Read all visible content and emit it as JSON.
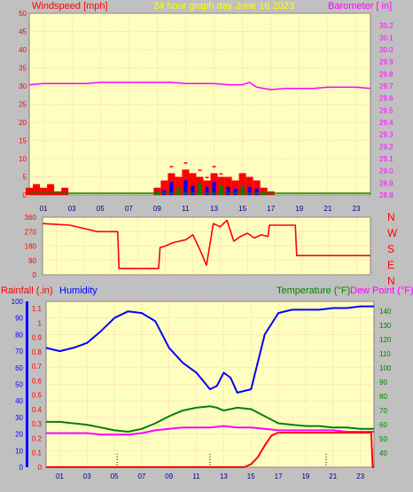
{
  "header": {
    "left": "Windspeed [mph]",
    "center": "24 hour graph day   June 16 2023",
    "right": "Barometer [ in]"
  },
  "colors": {
    "bg": "#c0c0c0",
    "plot": "#ffffc0",
    "grid": "#ff9090",
    "wind": "#ff0000",
    "gust_blue": "#0000ff",
    "gust_green": "#008000",
    "baro": "#ff00ff",
    "humidity": "#0000ff",
    "temp": "#008000",
    "dew": "#ff00ff",
    "rain": "#ff0000",
    "title": "#ffff00"
  },
  "x_ticks": [
    "01",
    "03",
    "05",
    "07",
    "09",
    "11",
    "13",
    "15",
    "17",
    "19",
    "21",
    "23"
  ],
  "lower_labels": {
    "rain": "Rainfall (.in)",
    "humidity": "Humidity",
    "temp": "Temperature (°F)",
    "dew": "Dew Point (°F)"
  },
  "compass": [
    "N",
    "W",
    "S",
    "E",
    "N"
  ],
  "chart_data": [
    {
      "type": "line",
      "title": "Windspeed [mph] / Barometer [ in]",
      "x_range": [
        0,
        24
      ],
      "ylim_left": [
        0,
        50
      ],
      "yticks_left": [
        0,
        5,
        10,
        15,
        20,
        25,
        30,
        35,
        40,
        45,
        50
      ],
      "ylim_right": [
        28.8,
        30.3
      ],
      "yticks_right": [
        28.8,
        28.9,
        29.0,
        29.1,
        29.2,
        29.3,
        29.4,
        29.5,
        29.6,
        29.7,
        29.8,
        29.9,
        30.0,
        30.1,
        30.2
      ],
      "series": [
        {
          "name": "Barometer",
          "axis": "right",
          "x": [
            0,
            1,
            2,
            3,
            4,
            5,
            6,
            7,
            8,
            9,
            10,
            11,
            12,
            13,
            14,
            15,
            15.5,
            16,
            16.5,
            17,
            18,
            19,
            20,
            21,
            22,
            23,
            24
          ],
          "y": [
            29.71,
            29.72,
            29.72,
            29.72,
            29.72,
            29.73,
            29.73,
            29.73,
            29.73,
            29.73,
            29.73,
            29.72,
            29.72,
            29.72,
            29.71,
            29.71,
            29.73,
            29.69,
            29.68,
            29.67,
            29.68,
            29.68,
            29.68,
            29.69,
            29.69,
            29.69,
            29.68
          ]
        },
        {
          "name": "Windspeed",
          "axis": "left",
          "x": [
            0,
            0.5,
            1,
            1.5,
            2,
            2.5,
            3,
            5,
            6,
            8.5,
            9,
            9.5,
            10,
            10.5,
            11,
            11.5,
            12,
            12.5,
            13,
            13.5,
            14,
            14.5,
            15,
            15.5,
            16,
            16.5,
            17,
            18,
            20,
            24
          ],
          "y": [
            2,
            3,
            2,
            3,
            1,
            2,
            0,
            0,
            0,
            0,
            2,
            4,
            6,
            5,
            7,
            6,
            5,
            4,
            6,
            5,
            5,
            4,
            6,
            5,
            4,
            2,
            1,
            0,
            0,
            0
          ]
        },
        {
          "name": "Gust",
          "axis": "left",
          "x": [
            9,
            9.5,
            10,
            10.5,
            11,
            11.5,
            12,
            12.5,
            13,
            13.5,
            14,
            14.5,
            15,
            15.5,
            16,
            16.5
          ],
          "y": [
            2,
            3,
            8,
            5,
            9,
            6,
            7,
            5,
            8,
            6,
            5,
            4,
            6,
            5,
            4,
            2
          ]
        }
      ]
    },
    {
      "type": "line",
      "title": "Wind direction",
      "x_range": [
        0,
        24
      ],
      "ylim": [
        0,
        360
      ],
      "yticks": [
        0,
        90,
        180,
        270,
        360
      ],
      "series": [
        {
          "name": "Direction",
          "x": [
            0,
            1,
            2,
            3,
            4,
            5,
            5.5,
            5.6,
            8.5,
            8.6,
            9,
            9.5,
            10,
            10.5,
            11,
            11.5,
            12,
            12.5,
            13,
            13.5,
            14,
            14.5,
            15,
            15.5,
            16,
            16.5,
            16.6,
            18.5,
            18.6,
            24
          ],
          "y": [
            320,
            315,
            310,
            290,
            270,
            270,
            270,
            40,
            40,
            170,
            180,
            200,
            210,
            220,
            250,
            160,
            60,
            320,
            300,
            340,
            210,
            240,
            260,
            230,
            250,
            240,
            310,
            310,
            120,
            120
          ]
        }
      ]
    },
    {
      "type": "line",
      "title": "Rainfall / Humidity / Temperature / Dew Point",
      "x_range": [
        0,
        24
      ],
      "ylim_hum": [
        0,
        100
      ],
      "yticks_hum": [
        0,
        10,
        20,
        30,
        40,
        50,
        60,
        70,
        80,
        90,
        100
      ],
      "ylim_rain": [
        0,
        1.15
      ],
      "yticks_rain": [
        0,
        0.1,
        0.2,
        0.3,
        0.4,
        0.5,
        0.6,
        0.7,
        0.8,
        0.9,
        1.0,
        1.1
      ],
      "ylim_temp": [
        30,
        147
      ],
      "yticks_temp": [
        40,
        50,
        60,
        70,
        80,
        90,
        100,
        110,
        120,
        130,
        140
      ],
      "series": [
        {
          "name": "Humidity",
          "axis": "hum",
          "x": [
            0,
            1,
            2,
            3,
            4,
            5,
            6,
            7,
            8,
            9,
            10,
            11,
            12,
            12.5,
            13,
            13.5,
            14,
            15,
            16,
            17,
            18,
            19,
            20,
            21,
            22,
            23,
            24
          ],
          "y": [
            72,
            70,
            72,
            75,
            82,
            90,
            94,
            93,
            88,
            72,
            63,
            57,
            47,
            49,
            57,
            54,
            45,
            47,
            80,
            93,
            95,
            95,
            95,
            96,
            96,
            97,
            97
          ]
        },
        {
          "name": "Temperature",
          "axis": "temp",
          "x": [
            0,
            1,
            2,
            3,
            4,
            5,
            6,
            7,
            8,
            9,
            10,
            11,
            12,
            12.5,
            13,
            14,
            15,
            16,
            17,
            18,
            19,
            20,
            21,
            22,
            23,
            24
          ],
          "y": [
            62,
            62,
            61,
            60,
            58,
            56,
            55,
            57,
            61,
            66,
            70,
            72,
            73,
            72,
            70,
            72,
            71,
            66,
            61,
            60,
            59,
            59,
            58,
            58,
            57,
            57
          ]
        },
        {
          "name": "Dew Point",
          "axis": "temp",
          "x": [
            0,
            1,
            2,
            3,
            4,
            5,
            6,
            7,
            8,
            9,
            10,
            11,
            12,
            13,
            14,
            15,
            16,
            17,
            18,
            19,
            20,
            21,
            22,
            23,
            24
          ],
          "y": [
            54,
            54,
            54,
            54,
            53,
            53,
            53,
            54,
            56,
            57,
            58,
            58,
            58,
            59,
            58,
            58,
            57,
            56,
            56,
            56,
            56,
            56,
            55,
            55,
            55
          ]
        },
        {
          "name": "Rainfall",
          "axis": "rain",
          "x": [
            0,
            14.5,
            15,
            15.5,
            16,
            16.5,
            17,
            17.5,
            23.8,
            23.9,
            24
          ],
          "y": [
            0,
            0,
            0.02,
            0.07,
            0.15,
            0.22,
            0.24,
            0.24,
            0.24,
            0,
            0
          ]
        }
      ]
    }
  ]
}
